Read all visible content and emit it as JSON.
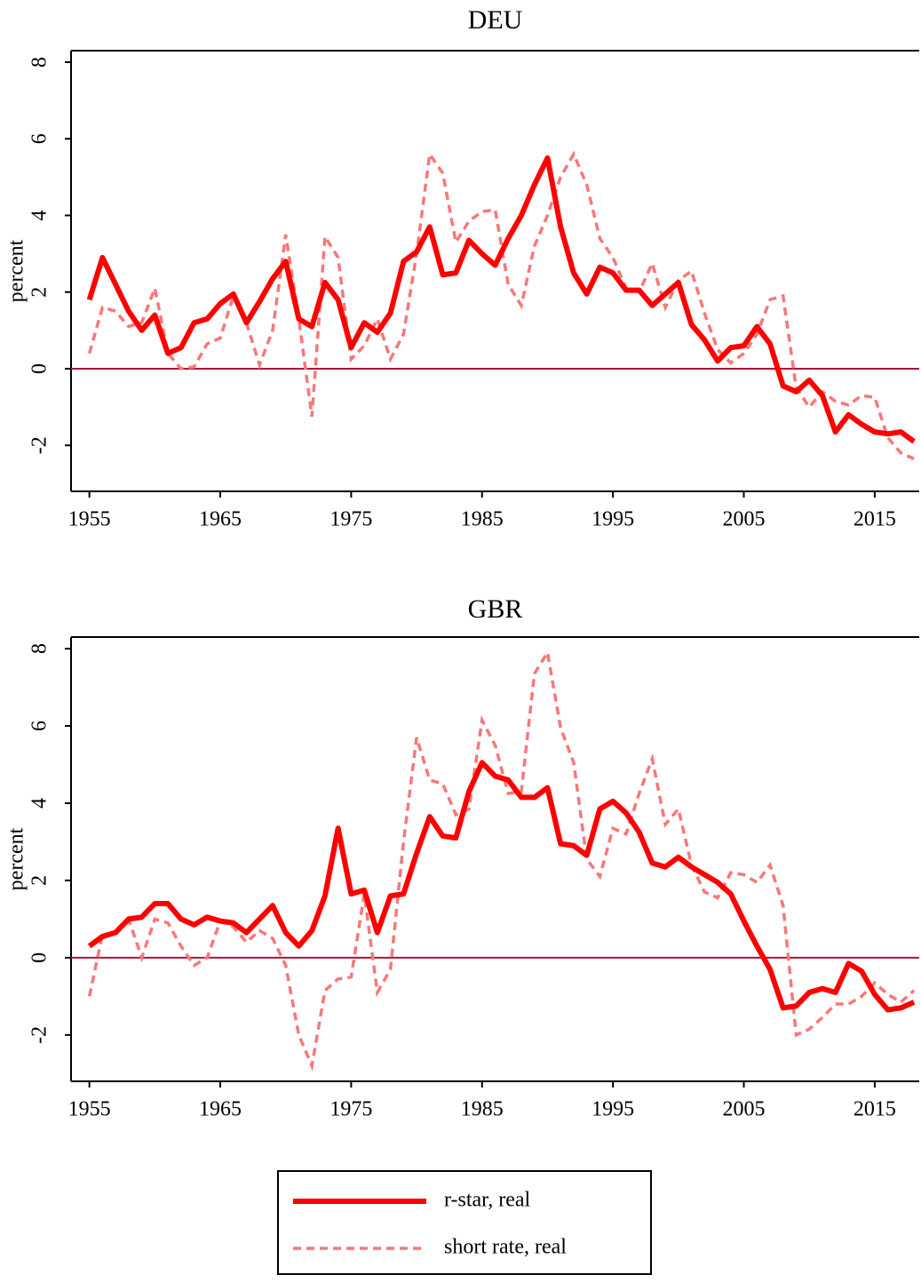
{
  "chart_data": [
    {
      "type": "line",
      "title": "DEU",
      "y_label": "percent",
      "x": [
        1955,
        1956,
        1957,
        1958,
        1959,
        1960,
        1961,
        1962,
        1963,
        1964,
        1965,
        1966,
        1967,
        1968,
        1969,
        1970,
        1971,
        1972,
        1973,
        1974,
        1975,
        1976,
        1977,
        1978,
        1979,
        1980,
        1981,
        1982,
        1983,
        1984,
        1985,
        1986,
        1987,
        1988,
        1989,
        1990,
        1991,
        1992,
        1993,
        1994,
        1995,
        1996,
        1997,
        1998,
        1999,
        2000,
        2001,
        2002,
        2003,
        2004,
        2005,
        2006,
        2007,
        2008,
        2009,
        2010,
        2011,
        2012,
        2013,
        2014,
        2015,
        2016,
        2017,
        2018
      ],
      "xlim": [
        1953.6,
        2018.4
      ],
      "xticks": [
        1955,
        1965,
        1975,
        1985,
        1995,
        2005,
        2015
      ],
      "ylim": [
        -3.2,
        8.3
      ],
      "yticks": [
        -2,
        0,
        2,
        4,
        6,
        8
      ],
      "reference_line": 0,
      "reference_color": "#b0103a",
      "legend": "bottom",
      "series": [
        {
          "name": "r-star, real",
          "color": "#ff0000",
          "style": "solid",
          "values": [
            1.8,
            2.9,
            2.2,
            1.5,
            1.0,
            1.4,
            0.4,
            0.55,
            1.2,
            1.3,
            1.7,
            1.95,
            1.2,
            1.75,
            2.35,
            2.8,
            1.3,
            1.1,
            2.25,
            1.8,
            0.55,
            1.2,
            0.95,
            1.45,
            2.8,
            3.05,
            3.7,
            2.45,
            2.5,
            3.35,
            3.0,
            2.7,
            3.4,
            4.0,
            4.8,
            5.5,
            3.7,
            2.5,
            1.95,
            2.65,
            2.5,
            2.05,
            2.05,
            1.65,
            1.95,
            2.25,
            1.15,
            0.75,
            0.2,
            0.55,
            0.6,
            1.1,
            0.65,
            -0.45,
            -0.6,
            -0.3,
            -0.7,
            -1.65,
            -1.2,
            -1.45,
            -1.65,
            -1.7,
            -1.65,
            -1.9
          ]
        },
        {
          "name": "short rate, real",
          "color": "#f87878",
          "style": "dashed",
          "values": [
            0.4,
            1.6,
            1.5,
            1.1,
            1.2,
            2.1,
            0.4,
            0.0,
            0.05,
            0.65,
            0.8,
            1.9,
            1.2,
            0.1,
            1.0,
            3.5,
            1.3,
            -1.25,
            3.45,
            2.9,
            0.25,
            0.6,
            1.3,
            0.25,
            0.9,
            3.0,
            5.6,
            5.1,
            3.3,
            3.85,
            4.1,
            4.15,
            2.2,
            1.65,
            3.2,
            4.0,
            5.0,
            5.6,
            4.8,
            3.4,
            2.9,
            2.1,
            2.0,
            2.75,
            1.6,
            2.3,
            2.55,
            1.45,
            0.5,
            0.15,
            0.4,
            0.9,
            1.8,
            1.9,
            -0.5,
            -1.0,
            -0.6,
            -0.85,
            -0.95,
            -0.7,
            -0.75,
            -1.8,
            -2.2,
            -2.35
          ]
        }
      ]
    },
    {
      "type": "line",
      "title": "GBR",
      "y_label": "percent",
      "x": [
        1955,
        1956,
        1957,
        1958,
        1959,
        1960,
        1961,
        1962,
        1963,
        1964,
        1965,
        1966,
        1967,
        1968,
        1969,
        1970,
        1971,
        1972,
        1973,
        1974,
        1975,
        1976,
        1977,
        1978,
        1979,
        1980,
        1981,
        1982,
        1983,
        1984,
        1985,
        1986,
        1987,
        1988,
        1989,
        1990,
        1991,
        1992,
        1993,
        1994,
        1995,
        1996,
        1997,
        1998,
        1999,
        2000,
        2001,
        2002,
        2003,
        2004,
        2005,
        2006,
        2007,
        2008,
        2009,
        2010,
        2011,
        2012,
        2013,
        2014,
        2015,
        2016,
        2017,
        2018
      ],
      "xlim": [
        1953.6,
        2018.4
      ],
      "xticks": [
        1955,
        1965,
        1975,
        1985,
        1995,
        2005,
        2015
      ],
      "ylim": [
        -3.2,
        8.3
      ],
      "yticks": [
        -2,
        0,
        2,
        4,
        6,
        8
      ],
      "reference_line": 0,
      "reference_color": "#b0103a",
      "series": [
        {
          "color": "#ff0000",
          "style": "solid",
          "values": [
            0.3,
            0.55,
            0.65,
            1.0,
            1.05,
            1.4,
            1.4,
            1.0,
            0.85,
            1.05,
            0.95,
            0.9,
            0.65,
            1.0,
            1.35,
            0.65,
            0.3,
            0.7,
            1.6,
            3.35,
            1.65,
            1.75,
            0.65,
            1.6,
            1.65,
            2.7,
            3.65,
            3.15,
            3.1,
            4.3,
            5.05,
            4.7,
            4.6,
            4.15,
            4.15,
            4.4,
            2.95,
            2.9,
            2.65,
            3.85,
            4.05,
            3.75,
            3.25,
            2.45,
            2.35,
            2.6,
            2.35,
            2.15,
            1.95,
            1.65,
            0.95,
            0.3,
            -0.3,
            -1.3,
            -1.25,
            -0.9,
            -0.8,
            -0.9,
            -0.15,
            -0.35,
            -0.95,
            -1.35,
            -1.3,
            -1.15
          ]
        },
        {
          "color": "#f87878",
          "style": "dashed",
          "values": [
            -1.0,
            0.6,
            0.65,
            1.0,
            0.0,
            1.0,
            0.9,
            0.3,
            -0.2,
            0.0,
            0.95,
            0.8,
            0.4,
            0.7,
            0.5,
            -0.2,
            -2.0,
            -2.8,
            -0.85,
            -0.55,
            -0.5,
            1.65,
            -0.9,
            -0.3,
            3.0,
            5.7,
            4.6,
            4.5,
            3.7,
            3.85,
            6.15,
            5.5,
            4.25,
            4.3,
            7.35,
            7.9,
            5.95,
            5.05,
            2.55,
            2.1,
            3.35,
            3.2,
            4.25,
            5.15,
            3.45,
            3.85,
            2.4,
            1.7,
            1.55,
            2.2,
            2.15,
            1.95,
            2.4,
            1.35,
            -2.0,
            -1.85,
            -1.55,
            -1.2,
            -1.2,
            -1.0,
            -0.65,
            -0.95,
            -1.15,
            -0.85
          ]
        }
      ]
    }
  ]
}
